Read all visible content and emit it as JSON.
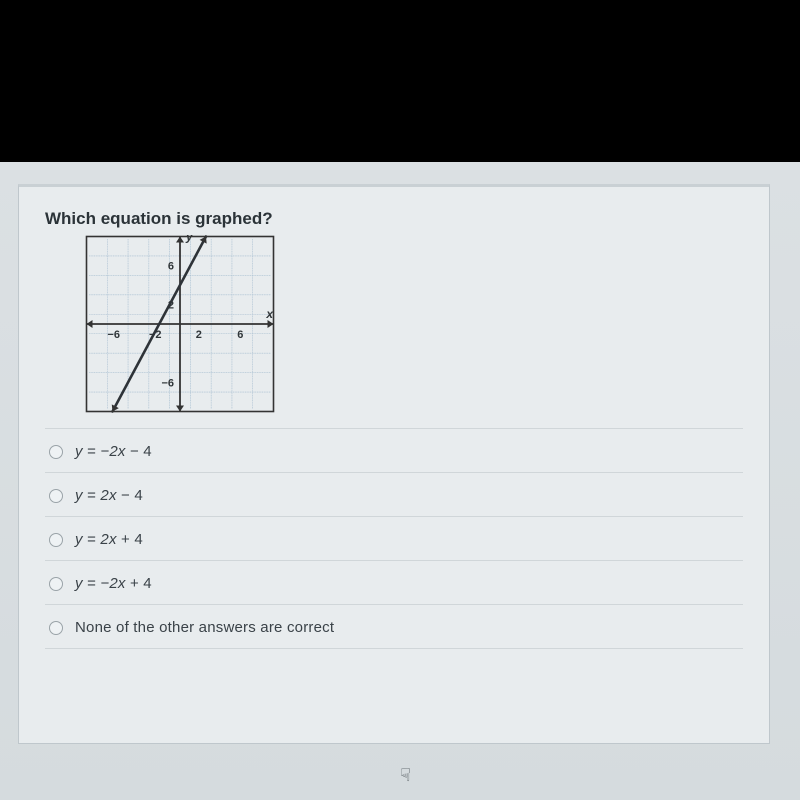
{
  "question": {
    "text": "Which equation is graphed?"
  },
  "options": [
    {
      "html": "<span class='opt-text'>y <span class='n'>=</span> −2x <span class='n'>− 4</span></span>"
    },
    {
      "html": "<span class='opt-text'>y <span class='n'>=</span> 2x <span class='n'>− 4</span></span>"
    },
    {
      "html": "<span class='opt-text'>y <span class='n'>=</span> 2x <span class='n'>+ 4</span></span>"
    },
    {
      "html": "<span class='opt-text'>y <span class='n'>=</span> −2x <span class='n'>+ 4</span></span>"
    },
    {
      "html": "<span class='opt-text upright'>None of the other answers are correct</span>"
    }
  ],
  "graph": {
    "width": 190,
    "height": 178,
    "xlim": [
      -9,
      9
    ],
    "ylim": [
      -9,
      9
    ],
    "ticks_x": [
      -6,
      -2,
      2,
      6
    ],
    "ticks_x_labels": {
      "-6": "−6",
      "-2": "−2",
      "2": "2",
      "6": "6"
    },
    "ticks_y": [
      -6,
      2,
      6
    ],
    "ticks_y_labels": {
      "-6": "−6",
      "2": "2",
      "6": "6"
    },
    "grid_step": 2,
    "grid_color": "#a9bfd0",
    "grid_width": 0.55,
    "mid_grid_color": "#c9d7e2",
    "axis_color": "#333333",
    "axis_width": 1.8,
    "border_color": "#333333",
    "label_color": "#303639",
    "label_fontsize": 12,
    "axis_label_x": "x",
    "axis_label_y": "y",
    "background": "#e8ecee",
    "line": {
      "slope": 2,
      "intercept": 4,
      "color": "#2e3338",
      "width": 2.6
    }
  }
}
